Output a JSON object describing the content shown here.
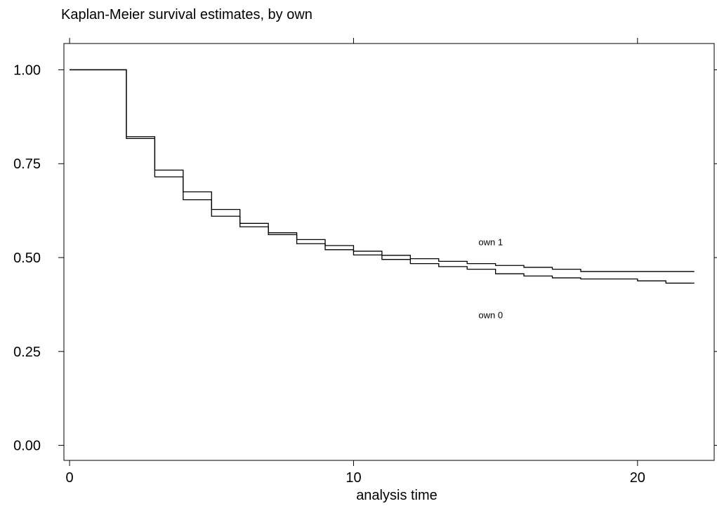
{
  "chart_data": {
    "type": "line",
    "title": "Kaplan-Meier survival estimates, by own",
    "xlabel": "analysis time",
    "ylabel": "",
    "xlim": [
      -0.2,
      22.7
    ],
    "ylim": [
      -0.04,
      1.07
    ],
    "xticks": [
      0,
      10,
      20
    ],
    "yticks": [
      0.0,
      0.25,
      0.5,
      0.75,
      1.0
    ],
    "ytick_labels": [
      "0.00",
      "0.25",
      "0.50",
      "0.75",
      "1.00"
    ],
    "xtick_labels": [
      "0",
      "10",
      "20"
    ],
    "grid": false,
    "line_color": "#000000",
    "series": [
      {
        "name": "own 1",
        "step": true,
        "x": [
          0,
          2,
          3,
          4,
          5,
          6,
          7,
          8,
          9,
          10,
          11,
          12,
          13,
          14,
          15,
          16,
          17,
          18,
          19,
          20,
          21,
          22
        ],
        "y": [
          1.0,
          0.822,
          0.733,
          0.675,
          0.628,
          0.591,
          0.566,
          0.548,
          0.532,
          0.517,
          0.506,
          0.497,
          0.49,
          0.484,
          0.479,
          0.474,
          0.469,
          0.463,
          0.463,
          0.463,
          0.463,
          0.463
        ]
      },
      {
        "name": "own 0",
        "step": true,
        "x": [
          0,
          2,
          3,
          4,
          5,
          6,
          7,
          8,
          9,
          10,
          11,
          12,
          13,
          14,
          15,
          16,
          17,
          18,
          19,
          20,
          21,
          22
        ],
        "y": [
          1.0,
          0.817,
          0.715,
          0.654,
          0.61,
          0.582,
          0.561,
          0.537,
          0.521,
          0.507,
          0.495,
          0.484,
          0.476,
          0.469,
          0.457,
          0.451,
          0.446,
          0.443,
          0.443,
          0.438,
          0.432,
          0.432
        ]
      }
    ],
    "annotations": [
      {
        "text": "own 1",
        "x": 14.4,
        "y": 0.533
      },
      {
        "text": "own 0",
        "x": 14.4,
        "y": 0.338
      }
    ]
  }
}
